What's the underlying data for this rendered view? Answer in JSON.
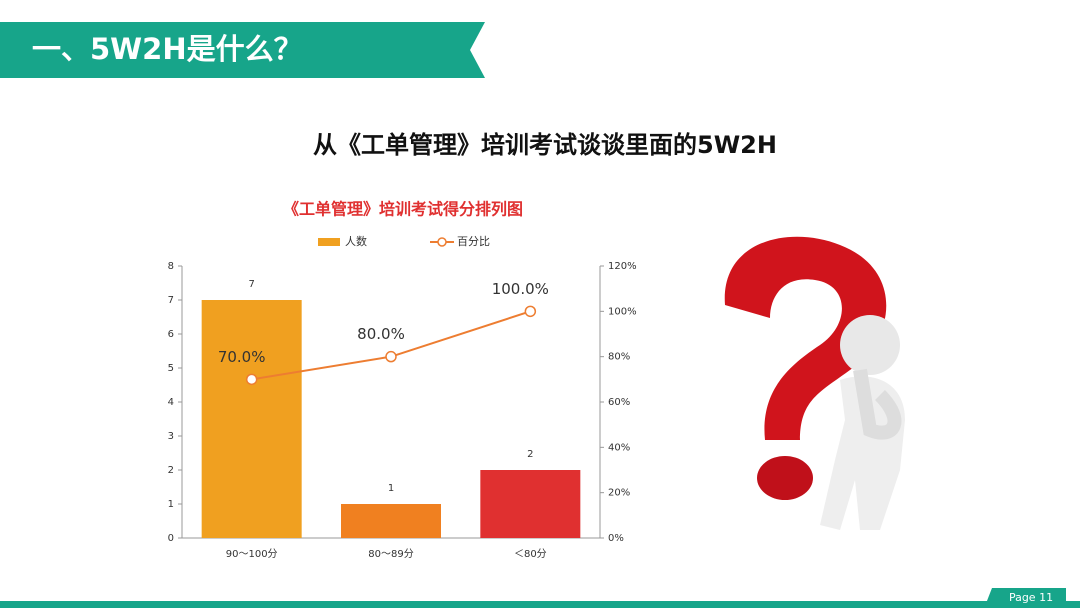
{
  "header": {
    "title": "一、5W2H是什么？"
  },
  "subtitle": "从《工单管理》培训考试谈谈里面的5W2H",
  "footer": {
    "page": "Page 11"
  },
  "chart_data": {
    "type": "bar-line",
    "title": "《工单管理》培训考试得分排列图",
    "categories": [
      "90～100分",
      "80～89分",
      "＜80分"
    ],
    "series": [
      {
        "name": "人数",
        "type": "bar",
        "color": "#f0a020",
        "colors": [
          "#f0a020",
          "#f08020",
          "#e03030"
        ],
        "values": [
          7,
          1,
          2
        ]
      },
      {
        "name": "百分比",
        "type": "line",
        "axis": "y2",
        "color": "#ed7d31",
        "values": [
          70,
          80,
          100
        ],
        "value_labels": [
          "70.0%",
          "80.0%",
          "100.0%"
        ]
      }
    ],
    "ylim": [
      0,
      8
    ],
    "yticks": [
      0,
      1,
      2,
      3,
      4,
      5,
      6,
      7,
      8
    ],
    "y2lim": [
      0,
      120
    ],
    "y2ticks": [
      {
        "value": 0,
        "label": "0%"
      },
      {
        "value": 20,
        "label": "20%"
      },
      {
        "value": 40,
        "label": "40%"
      },
      {
        "value": 60,
        "label": "60%"
      },
      {
        "value": 80,
        "label": "80%"
      },
      {
        "value": 100,
        "label": "100%"
      },
      {
        "value": 120,
        "label": "120%"
      }
    ]
  }
}
